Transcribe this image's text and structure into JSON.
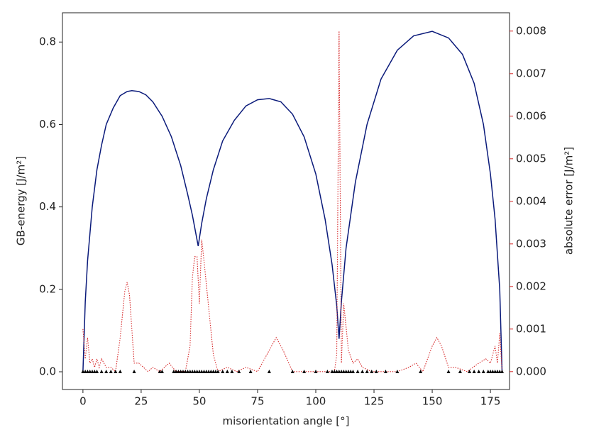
{
  "chart_data": {
    "type": "line",
    "x_label": "misorientation angle [°]",
    "y_label": "GB-energy [J/m²]",
    "y2_label": "absolute error [J/m²]",
    "y2_color": "#d62728",
    "xlim": [
      -8.8,
      183.2
    ],
    "ylim": [
      -0.043,
      0.871
    ],
    "y2lim": [
      -0.00042,
      0.00843
    ],
    "xticks": [
      0,
      25,
      50,
      75,
      100,
      125,
      150,
      175
    ],
    "yticks": [
      {
        "value": 0,
        "label": "0.0"
      },
      0.2,
      0.4,
      0.6,
      0.8
    ],
    "y2ticks": [
      {
        "value": 0,
        "label": "0.000"
      },
      {
        "value": 0.001,
        "label": "0.001"
      },
      {
        "value": 0.002,
        "label": "0.002"
      },
      {
        "value": 0.003,
        "label": "0.003"
      },
      {
        "value": 0.004,
        "label": "0.004"
      },
      {
        "value": 0.005,
        "label": "0.005"
      },
      {
        "value": 0.006,
        "label": "0.006"
      },
      {
        "value": 0.007,
        "label": "0.007"
      },
      {
        "value": 0.008,
        "label": "0.008"
      }
    ],
    "series": [
      {
        "color": "#0a1a7a",
        "style": "solid",
        "x": [
          0,
          1,
          2,
          4,
          6,
          8,
          10,
          13,
          16,
          19,
          21,
          24,
          27,
          30,
          34,
          38,
          42,
          45,
          47,
          48,
          49.5,
          51,
          53,
          56,
          60,
          65,
          70,
          75,
          80,
          85,
          90,
          95,
          100,
          104,
          107,
          109,
          110,
          111,
          113,
          117,
          122,
          128,
          135,
          142,
          150,
          157,
          163,
          168,
          172,
          175,
          177,
          179,
          180
        ],
        "values": [
          0.0,
          0.17,
          0.27,
          0.4,
          0.49,
          0.55,
          0.6,
          0.64,
          0.67,
          0.68,
          0.682,
          0.68,
          0.672,
          0.655,
          0.62,
          0.57,
          0.5,
          0.43,
          0.38,
          0.35,
          0.305,
          0.36,
          0.42,
          0.49,
          0.56,
          0.61,
          0.645,
          0.66,
          0.663,
          0.655,
          0.625,
          0.57,
          0.48,
          0.37,
          0.26,
          0.16,
          0.08,
          0.17,
          0.3,
          0.46,
          0.6,
          0.71,
          0.78,
          0.815,
          0.826,
          0.81,
          0.77,
          0.7,
          0.6,
          0.48,
          0.37,
          0.2,
          0.0
        ]
      },
      {
        "color": "#d62728",
        "style": "dotted",
        "axis": "y2",
        "x": [
          0,
          1,
          2,
          3,
          4,
          5,
          6,
          7,
          8,
          10,
          12,
          14,
          16,
          18,
          19,
          20,
          22,
          24,
          26,
          28,
          30,
          33,
          37,
          40,
          44,
          46,
          47,
          48,
          49,
          50,
          51,
          52,
          54,
          56,
          58,
          62,
          66,
          70,
          75,
          80,
          83,
          86,
          90,
          95,
          100,
          105,
          108,
          109,
          110,
          111,
          112,
          114,
          116,
          118,
          120,
          124,
          130,
          135,
          140,
          143,
          146,
          150,
          152,
          154,
          157,
          160,
          165,
          170,
          173,
          175,
          177,
          178,
          179,
          180
        ],
        "values": [
          0.001,
          0.0003,
          0.0008,
          0.0002,
          0.0003,
          0.0001,
          0.0003,
          0.0001,
          0.0003,
          0.0001,
          0.0001,
          0.0,
          0.0008,
          0.0019,
          0.0021,
          0.0018,
          0.0002,
          0.0002,
          0.0001,
          0.0,
          0.0001,
          0.0,
          0.0002,
          0.0,
          0.0,
          0.0006,
          0.0022,
          0.0027,
          0.0027,
          0.0016,
          0.0031,
          0.0026,
          0.0015,
          0.0004,
          0.0,
          0.0001,
          0.0,
          0.0001,
          0.0,
          0.0005,
          0.0008,
          0.0005,
          0.0,
          0.0,
          0.0,
          0.0,
          0.0,
          0.0004,
          0.008,
          0.0002,
          0.0016,
          0.0005,
          0.0002,
          0.0003,
          0.0001,
          0.0,
          0.0,
          0.0,
          0.0001,
          0.0002,
          0.0,
          0.0006,
          0.0008,
          0.0006,
          0.0001,
          0.0001,
          0.0,
          0.0002,
          0.0003,
          0.0002,
          0.0006,
          0.0002,
          0.0009,
          0.0
        ]
      },
      {
        "color": "#000000",
        "style": "triangle",
        "x": [
          0,
          1,
          2,
          3,
          4,
          5,
          6,
          8,
          10,
          12,
          14,
          16,
          22,
          33,
          34,
          39,
          40,
          41,
          42,
          43,
          44,
          45,
          46,
          47,
          48,
          49,
          50,
          51,
          52,
          53,
          54,
          55,
          56,
          57,
          58,
          60,
          62,
          64,
          67,
          72,
          80,
          90,
          95,
          100,
          105,
          107,
          108,
          109,
          110,
          111,
          112,
          113,
          114,
          115,
          116,
          118,
          120,
          122,
          124,
          126,
          130,
          135,
          145,
          157,
          162,
          166,
          168,
          170,
          172,
          174,
          175,
          176,
          177,
          178,
          179,
          180
        ],
        "values": [
          0,
          0,
          0,
          0,
          0,
          0,
          0,
          0,
          0,
          0,
          0,
          0,
          0,
          0,
          0,
          0,
          0,
          0,
          0,
          0,
          0,
          0,
          0,
          0,
          0,
          0,
          0,
          0,
          0,
          0,
          0,
          0,
          0,
          0,
          0,
          0,
          0,
          0,
          0,
          0,
          0,
          0,
          0,
          0,
          0,
          0,
          0,
          0,
          0,
          0,
          0,
          0,
          0,
          0,
          0,
          0,
          0,
          0,
          0,
          0,
          0,
          0,
          0,
          0,
          0,
          0,
          0,
          0,
          0,
          0,
          0,
          0,
          0,
          0,
          0,
          0
        ]
      }
    ]
  }
}
